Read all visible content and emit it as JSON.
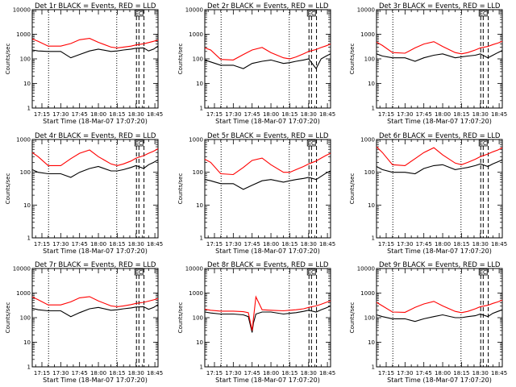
{
  "figure": {
    "background": "#ffffff",
    "ink_color": "#000000",
    "lld_color": "#ff0000"
  },
  "common": {
    "xlabel": "Start Time (18-Mar-07 17:07:20)",
    "ylabel": "Counts/sec",
    "x_tick_labels": [
      "17:15",
      "17:30",
      "17:45",
      "18:00",
      "18:15",
      "18:30",
      "18:45"
    ],
    "x_tick_minutes": [
      15,
      30,
      45,
      60,
      75,
      90,
      105
    ],
    "xlim_minutes": [
      7.3,
      107.5
    ],
    "dotted_minutes": [
      20.3,
      74.6
    ],
    "dashed_minutes": [
      90.3,
      92.3,
      96.3
    ],
    "box_label": "EC"
  },
  "chart_data": [
    {
      "type": "line",
      "title": "Det 1r  BLACK = Events, RED = LLD",
      "yscale": "log",
      "ylim": [
        1,
        10000
      ],
      "y_tick_labels": [
        "1",
        "10",
        "100",
        "1000",
        "10000"
      ],
      "y_tick_values": [
        1,
        10,
        100,
        1000,
        10000
      ],
      "series": [
        {
          "name": "Events",
          "color": "#000000"
        },
        {
          "name": "LLD",
          "color": "#ff0000"
        }
      ],
      "points": {
        "x": [
          7.3,
          12,
          20,
          30,
          38,
          45,
          53,
          60,
          70,
          75,
          80,
          86,
          90,
          96,
          100,
          104,
          107.5
        ],
        "black": [
          230,
          210,
          200,
          200,
          110,
          150,
          210,
          250,
          200,
          210,
          230,
          250,
          270,
          280,
          210,
          250,
          330
        ],
        "red": [
          650,
          520,
          330,
          330,
          420,
          600,
          680,
          470,
          300,
          280,
          300,
          330,
          370,
          410,
          460,
          520,
          580
        ]
      }
    },
    {
      "type": "line",
      "title": "Det 2r  BLACK = Events, RED = LLD",
      "yscale": "log",
      "ylim": [
        1,
        10000
      ],
      "y_tick_labels": [
        "1",
        "10",
        "100",
        "1000",
        "10000"
      ],
      "y_tick_values": [
        1,
        10,
        100,
        1000,
        10000
      ],
      "series": [
        {
          "name": "Events",
          "color": "#000000"
        },
        {
          "name": "LLD",
          "color": "#ff0000"
        }
      ],
      "points": {
        "x": [
          7.3,
          12,
          20,
          30,
          38,
          45,
          53,
          60,
          70,
          75,
          80,
          86,
          90,
          96,
          100,
          104,
          107.5
        ],
        "black": [
          90,
          75,
          55,
          55,
          40,
          65,
          80,
          90,
          65,
          70,
          80,
          90,
          100,
          40,
          100,
          130,
          160
        ],
        "red": [
          280,
          230,
          95,
          90,
          150,
          230,
          290,
          180,
          110,
          100,
          120,
          160,
          200,
          240,
          290,
          340,
          400
        ]
      }
    },
    {
      "type": "line",
      "title": "Det 3r  BLACK = Events, RED = LLD",
      "yscale": "log",
      "ylim": [
        1,
        10000
      ],
      "y_tick_labels": [
        "1",
        "10",
        "100",
        "1000",
        "10000"
      ],
      "y_tick_values": [
        1,
        10,
        100,
        1000,
        10000
      ],
      "series": [
        {
          "name": "Events",
          "color": "#000000"
        },
        {
          "name": "LLD",
          "color": "#ff0000"
        }
      ],
      "points": {
        "x": [
          7.3,
          12,
          20,
          30,
          38,
          45,
          53,
          60,
          70,
          75,
          80,
          86,
          90,
          96,
          100,
          104,
          107.5
        ],
        "black": [
          160,
          130,
          110,
          110,
          80,
          110,
          140,
          160,
          110,
          120,
          130,
          140,
          160,
          110,
          140,
          180,
          220
        ],
        "red": [
          480,
          350,
          180,
          170,
          280,
          400,
          500,
          320,
          180,
          160,
          180,
          230,
          280,
          320,
          380,
          440,
          520
        ]
      }
    },
    {
      "type": "line",
      "title": "Det 4r  BLACK = Events, RED = LLD",
      "yscale": "log",
      "ylim": [
        1,
        1000
      ],
      "y_tick_labels": [
        "1",
        "10",
        "100",
        "1000"
      ],
      "y_tick_values": [
        1,
        10,
        100,
        1000
      ],
      "series": [
        {
          "name": "Events",
          "color": "#000000"
        },
        {
          "name": "LLD",
          "color": "#ff0000"
        }
      ],
      "points": {
        "x": [
          7.3,
          12,
          20,
          30,
          38,
          45,
          53,
          60,
          70,
          75,
          80,
          86,
          90,
          96,
          100,
          104,
          107.5
        ],
        "black": [
          120,
          100,
          90,
          90,
          70,
          100,
          130,
          150,
          110,
          110,
          120,
          140,
          160,
          130,
          170,
          200,
          240
        ],
        "red": [
          400,
          300,
          160,
          160,
          260,
          380,
          480,
          300,
          180,
          160,
          180,
          220,
          270,
          320,
          380,
          440,
          520
        ]
      }
    },
    {
      "type": "line",
      "title": "Det 5r  BLACK = Events, RED = LLD",
      "yscale": "log",
      "ylim": [
        1,
        1000
      ],
      "y_tick_labels": [
        "1",
        "10",
        "100",
        "1000"
      ],
      "y_tick_values": [
        1,
        10,
        100,
        1000
      ],
      "series": [
        {
          "name": "Events",
          "color": "#000000"
        },
        {
          "name": "LLD",
          "color": "#ff0000"
        }
      ],
      "points": {
        "x": [
          7.3,
          12,
          20,
          30,
          38,
          45,
          53,
          60,
          70,
          75,
          80,
          86,
          90,
          96,
          100,
          104,
          107.5
        ],
        "black": [
          60,
          55,
          45,
          45,
          30,
          40,
          55,
          60,
          50,
          55,
          60,
          65,
          70,
          60,
          75,
          95,
          110
        ],
        "red": [
          250,
          200,
          90,
          85,
          140,
          230,
          270,
          170,
          100,
          100,
          120,
          150,
          180,
          220,
          270,
          330,
          380
        ]
      }
    },
    {
      "type": "line",
      "title": "Det 6r  BLACK = Events, RED = LLD",
      "yscale": "log",
      "ylim": [
        1,
        1000
      ],
      "y_tick_labels": [
        "1",
        "10",
        "100",
        "1000"
      ],
      "y_tick_values": [
        1,
        10,
        100,
        1000
      ],
      "series": [
        {
          "name": "Events",
          "color": "#000000"
        },
        {
          "name": "LLD",
          "color": "#ff0000"
        }
      ],
      "points": {
        "x": [
          7.3,
          12,
          20,
          30,
          38,
          45,
          53,
          60,
          70,
          75,
          80,
          86,
          90,
          96,
          100,
          104,
          107.5
        ],
        "black": [
          150,
          120,
          100,
          100,
          90,
          130,
          160,
          170,
          120,
          130,
          140,
          160,
          180,
          150,
          180,
          210,
          240
        ],
        "red": [
          600,
          400,
          170,
          160,
          260,
          400,
          560,
          340,
          190,
          170,
          200,
          250,
          300,
          360,
          420,
          480,
          560
        ]
      }
    },
    {
      "type": "line",
      "title": "Det 7r  BLACK = Events, RED = LLD",
      "yscale": "log",
      "ylim": [
        1,
        10000
      ],
      "y_tick_labels": [
        "1",
        "10",
        "100",
        "1000",
        "10000"
      ],
      "y_tick_values": [
        1,
        10,
        100,
        1000,
        10000
      ],
      "series": [
        {
          "name": "Events",
          "color": "#000000"
        },
        {
          "name": "LLD",
          "color": "#ff0000"
        }
      ],
      "points": {
        "x": [
          7.3,
          12,
          20,
          30,
          38,
          45,
          53,
          60,
          70,
          75,
          80,
          86,
          90,
          96,
          100,
          104,
          107.5
        ],
        "black": [
          240,
          210,
          190,
          190,
          110,
          160,
          230,
          260,
          200,
          210,
          230,
          250,
          270,
          280,
          220,
          260,
          340
        ],
        "red": [
          700,
          540,
          330,
          330,
          440,
          640,
          720,
          480,
          300,
          280,
          300,
          340,
          380,
          420,
          470,
          530,
          600
        ]
      }
    },
    {
      "type": "line",
      "title": "Det 8r  BLACK = Events, RED = LLD",
      "yscale": "log",
      "ylim": [
        1,
        10000
      ],
      "y_tick_labels": [
        "1",
        "10",
        "100",
        "1000",
        "10000"
      ],
      "y_tick_values": [
        1,
        10,
        100,
        1000,
        10000
      ],
      "series": [
        {
          "name": "Events",
          "color": "#000000"
        },
        {
          "name": "LLD",
          "color": "#ff0000"
        }
      ],
      "points": {
        "x": [
          7.3,
          12,
          20,
          30,
          38,
          42,
          45,
          46,
          48,
          53,
          60,
          70,
          75,
          80,
          86,
          90,
          96,
          100,
          104,
          107.5
        ],
        "black": [
          170,
          155,
          140,
          140,
          130,
          110,
          25,
          60,
          140,
          170,
          170,
          140,
          150,
          160,
          180,
          200,
          170,
          210,
          250,
          300
        ],
        "red": [
          220,
          200,
          185,
          185,
          175,
          160,
          30,
          90,
          700,
          210,
          200,
          190,
          200,
          210,
          230,
          260,
          300,
          350,
          420,
          480
        ]
      }
    },
    {
      "type": "line",
      "title": "Det 9r  BLACK = Events, RED = LLD",
      "yscale": "log",
      "ylim": [
        1,
        10000
      ],
      "y_tick_labels": [
        "1",
        "10",
        "100",
        "1000",
        "10000"
      ],
      "y_tick_values": [
        1,
        10,
        100,
        1000,
        10000
      ],
      "series": [
        {
          "name": "Events",
          "color": "#000000"
        },
        {
          "name": "LLD",
          "color": "#ff0000"
        }
      ],
      "points": {
        "x": [
          7.3,
          12,
          20,
          30,
          38,
          45,
          53,
          60,
          70,
          75,
          80,
          86,
          90,
          96,
          100,
          104,
          107.5
        ],
        "black": [
          130,
          110,
          90,
          90,
          70,
          90,
          110,
          130,
          100,
          100,
          110,
          120,
          140,
          110,
          150,
          180,
          210
        ],
        "red": [
          420,
          300,
          170,
          165,
          260,
          360,
          460,
          300,
          180,
          160,
          180,
          230,
          280,
          320,
          380,
          440,
          520
        ]
      }
    }
  ]
}
